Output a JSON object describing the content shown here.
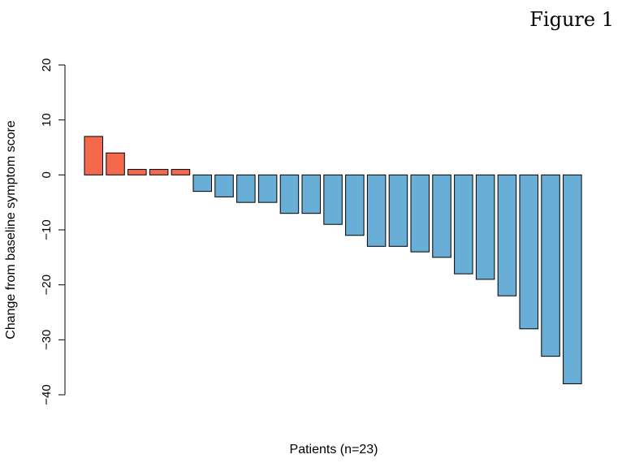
{
  "figure_label": "Figure 1",
  "chart_data": {
    "type": "bar",
    "title": "",
    "xlabel": "Patients (n=23)",
    "ylabel": "Change from baseline symptom score",
    "ylim": [
      -40,
      20
    ],
    "yticks": [
      20,
      10,
      0,
      -10,
      -20,
      -30,
      -40
    ],
    "grid": false,
    "values": [
      7,
      4,
      1,
      1,
      1,
      -3,
      -4,
      -5,
      -5,
      -7,
      -7,
      -9,
      -11,
      -13,
      -13,
      -14,
      -15,
      -18,
      -19,
      -22,
      -28,
      -33,
      -38
    ],
    "colors": {
      "positive": "#F4694B",
      "negative": "#68AED6",
      "outline": "#000000"
    }
  }
}
